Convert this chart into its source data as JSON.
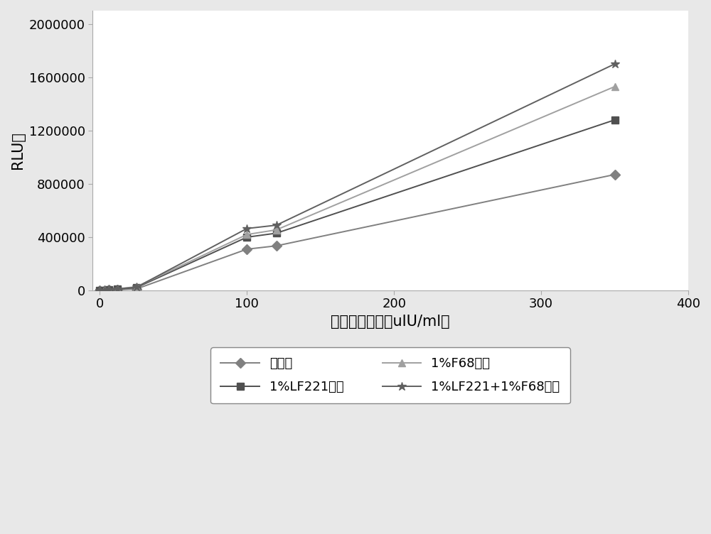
{
  "x": [
    0,
    3,
    6,
    12,
    25,
    100,
    120,
    350
  ],
  "series": [
    {
      "label": "无处理",
      "y": [
        0,
        1500,
        3000,
        6000,
        12000,
        310000,
        335000,
        870000
      ],
      "color": "#808080",
      "marker": "D",
      "markersize": 7,
      "linewidth": 1.4,
      "zorder": 3
    },
    {
      "label": "1%LF221处理",
      "y": [
        0,
        2000,
        5000,
        10000,
        22000,
        400000,
        430000,
        1280000
      ],
      "color": "#505050",
      "marker": "s",
      "markersize": 7,
      "linewidth": 1.4,
      "zorder": 3
    },
    {
      "label": "1%F68处理",
      "y": [
        0,
        3000,
        6000,
        13000,
        28000,
        420000,
        455000,
        1530000
      ],
      "color": "#a0a0a0",
      "marker": "^",
      "markersize": 7,
      "linewidth": 1.4,
      "zorder": 3
    },
    {
      "label": "1%LF221+1%F68处理",
      "y": [
        0,
        2500,
        5500,
        11000,
        25000,
        465000,
        490000,
        1700000
      ],
      "color": "#606060",
      "marker": "*",
      "markersize": 9,
      "linewidth": 1.4,
      "zorder": 4
    }
  ],
  "xlabel": "胰岛素浓度値（uIU/ml）",
  "ylabel": "RLU値",
  "xlim": [
    -5,
    400
  ],
  "ylim": [
    0,
    2100000
  ],
  "xticks": [
    0,
    100,
    200,
    300,
    400
  ],
  "yticks": [
    0,
    400000,
    800000,
    1200000,
    1600000,
    2000000
  ],
  "background_color": "#ffffff",
  "plot_bg_color": "#ffffff",
  "fig_bg_color": "#e8e8e8",
  "font_size_labels": 15,
  "font_size_ticks": 13,
  "font_size_legend": 13,
  "font_size_ylabel": 15
}
